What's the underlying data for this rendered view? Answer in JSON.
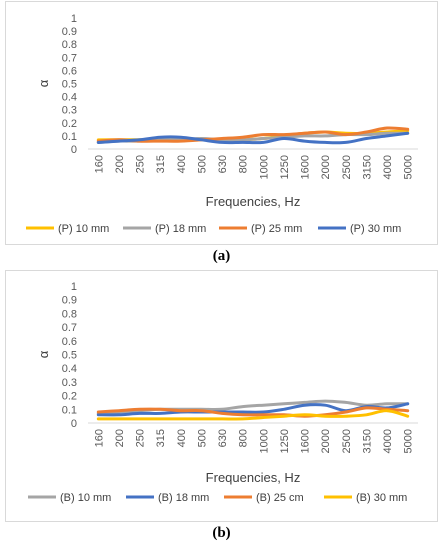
{
  "chart_data": [
    {
      "type": "line",
      "title": "",
      "xlabel": "Frequencies, Hz",
      "ylabel": "α",
      "ylim": [
        0,
        1
      ],
      "yticks": [
        "0",
        "0.1",
        "0.2",
        "0.3",
        "0.4",
        "0.5",
        "0.6",
        "0.7",
        "0.8",
        "0.9",
        "1"
      ],
      "categories": [
        "160",
        "200",
        "250",
        "315",
        "400",
        "500",
        "630",
        "800",
        "1000",
        "1250",
        "1600",
        "2000",
        "2500",
        "3150",
        "4000",
        "5000"
      ],
      "legend_position": "bottom",
      "grid": false,
      "series": [
        {
          "name": "(P) 10 mm",
          "color": "#ffc000",
          "values": [
            0.07,
            0.07,
            0.07,
            0.07,
            0.07,
            0.07,
            0.06,
            0.07,
            0.08,
            0.1,
            0.12,
            0.13,
            0.12,
            0.12,
            0.13,
            0.14
          ]
        },
        {
          "name": "(P) 18 mm",
          "color": "#a5a5a5",
          "values": [
            0.05,
            0.06,
            0.06,
            0.07,
            0.07,
            0.08,
            0.07,
            0.07,
            0.08,
            0.09,
            0.1,
            0.1,
            0.11,
            0.11,
            0.12,
            0.12
          ]
        },
        {
          "name": "(P) 25 mm",
          "color": "#ed7d31",
          "values": [
            0.06,
            0.07,
            0.06,
            0.06,
            0.06,
            0.07,
            0.08,
            0.09,
            0.11,
            0.11,
            0.12,
            0.13,
            0.11,
            0.13,
            0.16,
            0.15
          ]
        },
        {
          "name": "(P) 30 mm",
          "color": "#4472c4",
          "values": [
            0.05,
            0.06,
            0.07,
            0.09,
            0.09,
            0.07,
            0.05,
            0.05,
            0.05,
            0.08,
            0.06,
            0.05,
            0.05,
            0.08,
            0.1,
            0.12
          ]
        }
      ]
    },
    {
      "type": "line",
      "title": "",
      "xlabel": "Frequencies, Hz",
      "ylabel": "α",
      "ylim": [
        0,
        1
      ],
      "yticks": [
        "0",
        "0.1",
        "0.2",
        "0.3",
        "0.4",
        "0.5",
        "0.6",
        "0.7",
        "0.8",
        "0.9",
        "1"
      ],
      "categories": [
        "160",
        "200",
        "250",
        "315",
        "400",
        "500",
        "630",
        "800",
        "1000",
        "1250",
        "1600",
        "2000",
        "2500",
        "3150",
        "4000",
        "5000"
      ],
      "legend_position": "bottom",
      "grid": false,
      "series": [
        {
          "name": "(B) 10 mm",
          "color": "#a5a5a5",
          "values": [
            0.07,
            0.08,
            0.09,
            0.1,
            0.1,
            0.1,
            0.1,
            0.12,
            0.13,
            0.14,
            0.15,
            0.16,
            0.15,
            0.13,
            0.14,
            0.14
          ]
        },
        {
          "name": "(B) 18 mm",
          "color": "#4472c4",
          "values": [
            0.06,
            0.06,
            0.07,
            0.07,
            0.08,
            0.08,
            0.08,
            0.08,
            0.08,
            0.1,
            0.13,
            0.13,
            0.09,
            0.12,
            0.11,
            0.14
          ]
        },
        {
          "name": "(B) 25 cm",
          "color": "#ed7d31",
          "values": [
            0.08,
            0.09,
            0.1,
            0.1,
            0.09,
            0.09,
            0.07,
            0.06,
            0.06,
            0.06,
            0.05,
            0.06,
            0.08,
            0.11,
            0.1,
            0.09
          ]
        },
        {
          "name": "(B) 30 mm",
          "color": "#ffc000",
          "values": [
            0.03,
            0.03,
            0.03,
            0.03,
            0.03,
            0.03,
            0.03,
            0.03,
            0.04,
            0.05,
            0.06,
            0.05,
            0.05,
            0.06,
            0.09,
            0.05
          ]
        }
      ]
    }
  ],
  "captions": {
    "a": "(a)",
    "b": "(b)"
  }
}
